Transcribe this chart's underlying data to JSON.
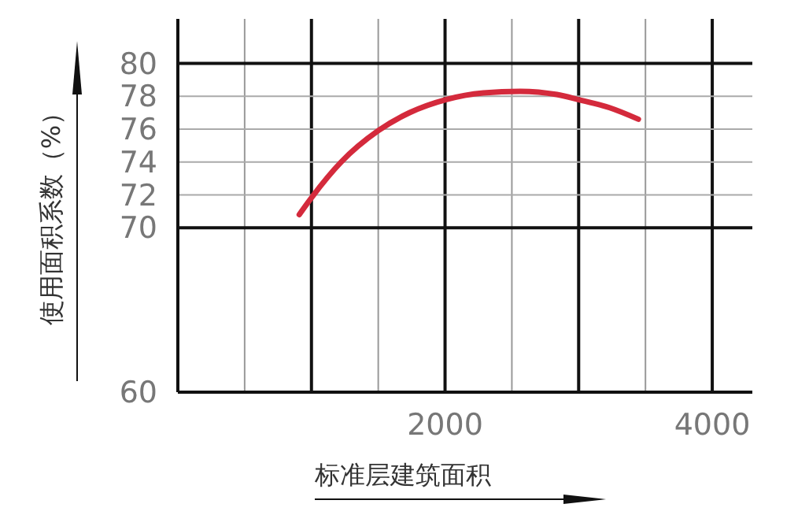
{
  "chart_data": {
    "type": "line",
    "xlabel": "标准层建筑面积",
    "ylabel": "使用面积系数（%）",
    "x": [
      909,
      1007,
      1223,
      1500,
      1735,
      2010,
      2287,
      2562,
      2837,
      2995,
      3231,
      3447
    ],
    "series": [
      {
        "color": "#d42a3c",
        "values": [
          70.8,
          71.9,
          74.0,
          75.9,
          77.0,
          77.8,
          78.2,
          78.3,
          78.1,
          77.8,
          77.3,
          76.6
        ]
      }
    ],
    "xlim": [
      0,
      4300
    ],
    "xticks": [
      {
        "value": 0,
        "label": null
      },
      {
        "value": 500,
        "label": null
      },
      {
        "value": 1000,
        "label": null
      },
      {
        "value": 1500,
        "label": null
      },
      2000,
      {
        "value": 2500,
        "label": null
      },
      {
        "value": 3000,
        "label": null
      },
      {
        "value": 3500,
        "label": null
      },
      4000
    ],
    "ylim": [
      60,
      82.7
    ],
    "yticks": [
      60,
      70,
      72,
      74,
      76,
      78,
      80
    ],
    "grid": true,
    "marker": "none",
    "line_style": "solid"
  }
}
